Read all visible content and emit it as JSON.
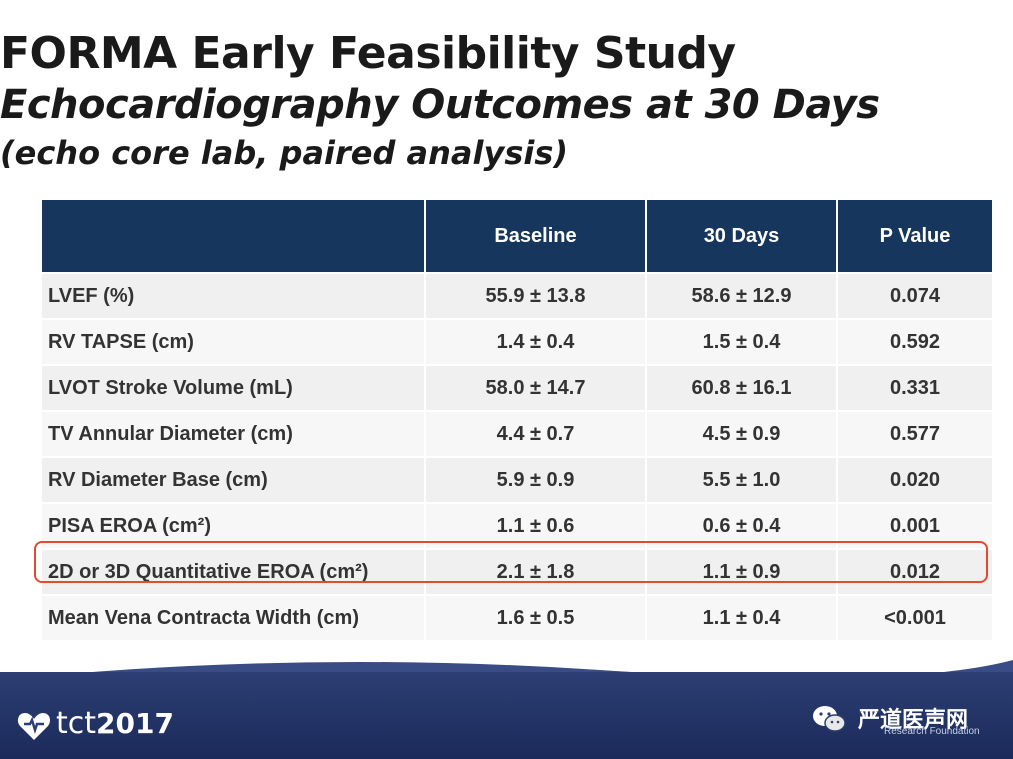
{
  "slide": {
    "title": "FORMA Early Feasibility Study",
    "subtitle": "Echocardiography Outcomes at 30 Days",
    "subtitle2": "(echo core lab, paired analysis)"
  },
  "table": {
    "headers": [
      "",
      "Baseline",
      "30 Days",
      "P Value"
    ],
    "rows": [
      {
        "label": "LVEF (%)",
        "baseline": "55.9 ± 13.8",
        "day30": "58.6 ± 12.9",
        "p": "0.074"
      },
      {
        "label": "RV TAPSE (cm)",
        "baseline": "1.4 ± 0.4",
        "day30": "1.5 ± 0.4",
        "p": "0.592"
      },
      {
        "label": "LVOT Stroke Volume (mL)",
        "baseline": "58.0 ± 14.7",
        "day30": "60.8 ± 16.1",
        "p": "0.331"
      },
      {
        "label": "TV Annular Diameter (cm)",
        "baseline": "4.4 ± 0.7",
        "day30": "4.5 ± 0.9",
        "p": "0.577"
      },
      {
        "label": "RV Diameter Base (cm)",
        "baseline": "5.9 ± 0.9",
        "day30": "5.5 ± 1.0",
        "p": "0.020"
      },
      {
        "label": "PISA EROA (cm²)",
        "baseline": "1.1 ± 0.6",
        "day30": "0.6 ± 0.4",
        "p": "0.001"
      },
      {
        "label": "2D or 3D Quantitative EROA (cm²)",
        "baseline": "2.1 ± 1.8",
        "day30": "1.1 ± 0.9",
        "p": "0.012"
      },
      {
        "label": "Mean Vena Contracta Width (cm)",
        "baseline": "1.6 ± 0.5",
        "day30": "1.1 ± 0.4",
        "p": "<0.001"
      }
    ],
    "highlighted_row": 6,
    "highlight_color": "#e34a2f",
    "header_color": "#17365d"
  },
  "footer": {
    "logo_text": "tct",
    "logo_year": "2017",
    "watermark": "严道医声网",
    "org_sub": "Research Foundation"
  }
}
